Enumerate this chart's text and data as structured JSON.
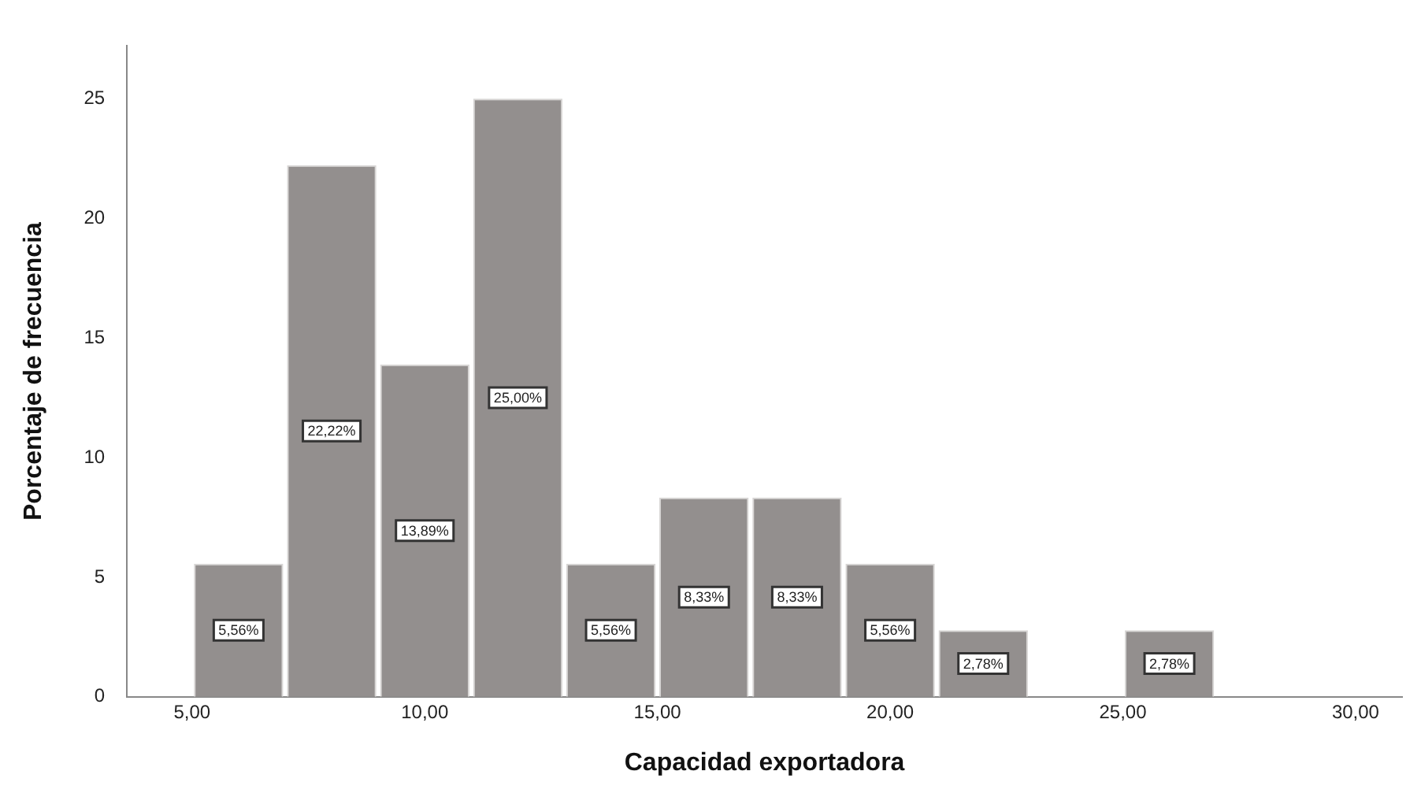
{
  "chart_data": {
    "type": "histogram",
    "xlabel": "Capacidad exportadora",
    "ylabel": "Porcentaje de frecuencia",
    "bins": [
      5,
      7,
      9,
      11,
      13,
      15,
      17,
      19,
      21,
      23,
      25,
      27
    ],
    "values": [
      5.56,
      22.22,
      13.89,
      25.0,
      5.56,
      8.33,
      8.33,
      5.56,
      2.78,
      0,
      2.78
    ],
    "value_labels": [
      "5,56%",
      "22,22%",
      "13,89%",
      "25,00%",
      "5,56%",
      "8,33%",
      "8,33%",
      "5,56%",
      "2,78%",
      null,
      "2,78%"
    ],
    "color": "#938f8e",
    "xlim": [
      3.6,
      31
    ],
    "xticks": [
      {
        "value": 5,
        "label": "5,00"
      },
      {
        "value": 10,
        "label": "10,00"
      },
      {
        "value": 15,
        "label": "15,00"
      },
      {
        "value": 20,
        "label": "20,00"
      },
      {
        "value": 25,
        "label": "25,00"
      },
      {
        "value": 30,
        "label": "30,00"
      }
    ],
    "ylim": [
      0,
      27.2
    ],
    "yticks": [
      0,
      5,
      10,
      15,
      20,
      25
    ],
    "grid": false,
    "legend": false
  }
}
